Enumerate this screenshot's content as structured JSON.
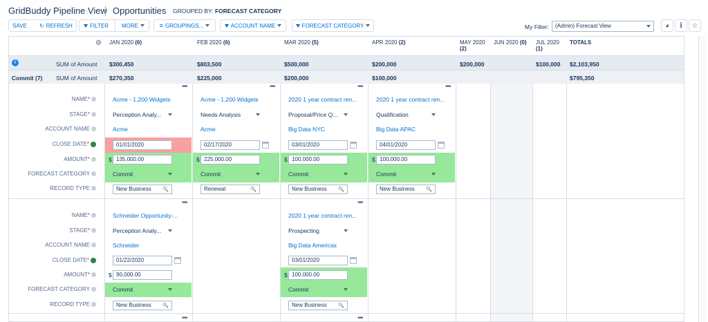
{
  "header": {
    "app_title": "GridBuddy Pipeline View",
    "object_title": "Opportunities",
    "grouped_label": "GROUPED BY:",
    "grouped_value": "FORECAST CATEGORY"
  },
  "toolbar": {
    "save": "SAVE",
    "refresh": "REFRESH",
    "filter": "FILTER",
    "more": "MORE",
    "groupings": "GROUPINGS...",
    "account_name": "ACCOUNT NAME",
    "forecast_category": "FORECAST CATEGORY",
    "my_filter_label": "My Filter:",
    "my_filter_value": "(Admin) Forecast View"
  },
  "columns": [
    {
      "label": "JAN 2020",
      "count": "(6)"
    },
    {
      "label": "FEB 2020",
      "count": "(6)"
    },
    {
      "label": "MAR 2020",
      "count": "(5)"
    },
    {
      "label": "APR 2020",
      "count": "(2)"
    },
    {
      "label": "MAY 2020",
      "count": "(2)"
    },
    {
      "label": "JUN 2020",
      "count": "(0)"
    },
    {
      "label": "JUL 2020",
      "count": "(1)"
    },
    {
      "label": "TOTALS",
      "count": ""
    }
  ],
  "summary": {
    "label": "SUM of Amount",
    "values": [
      "$300,450",
      "$803,500",
      "$500,000",
      "$200,000",
      "$200,000",
      "",
      "$100,000",
      "$2,103,950"
    ]
  },
  "commit_summary": {
    "group": "Commit (7)",
    "label": "SUM of Amount",
    "values": [
      "$270,350",
      "$225,000",
      "$200,000",
      "$100,000",
      "",
      "",
      "",
      "$795,350"
    ]
  },
  "field_labels": {
    "name": "NAME",
    "stage": "STAGE",
    "account": "ACCOUNT NAME",
    "close_date": "CLOSE DATE",
    "amount": "AMOUNT",
    "forecast": "FORECAST CATEGORY",
    "record_type": "RECORD TYPE",
    "required": "*"
  },
  "records_row1": [
    {
      "name": "Acme - 1,200 Widgets",
      "stage": "Perception Analy...",
      "account": "Acme",
      "close_date": "01/01/2020",
      "amount": "135,000.00",
      "forecast": "Commit",
      "record_type": "New Business"
    },
    {
      "name": "Acme - 1,200 Widgets",
      "stage": "Needs Analysis",
      "account": "Acme",
      "close_date": "02/17/2020",
      "amount": "225,000.00",
      "forecast": "Commit",
      "record_type": "Renewal"
    },
    {
      "name": "2020 1 year contract ren...",
      "stage": "Proposal/Price Q...",
      "account": "Big Data NYC",
      "close_date": "03/01/2020",
      "amount": "100,000.00",
      "forecast": "Commit",
      "record_type": "New Business"
    },
    {
      "name": "2020 1 year contract ren...",
      "stage": "Qualification",
      "account": "Big Data APAC",
      "close_date": "04/01/2020",
      "amount": "100,000.00",
      "forecast": "Commit",
      "record_type": "New Business"
    }
  ],
  "records_row2": [
    {
      "name": "Schneider Opportunity-...",
      "stage": "Perception Analy...",
      "account": "Schneider",
      "close_date": "01/22/2020",
      "amount": "90,000.00",
      "forecast": "Commit",
      "record_type": "New Business"
    },
    {
      "name": "2020 1 year contract ren...",
      "stage": "Prospecting",
      "account": "Big Data Americas",
      "close_date": "03/01/2020",
      "amount": "100,000.00",
      "forecast": "Commit",
      "record_type": "New Business"
    }
  ],
  "currency": "$",
  "colors": {
    "highlight_green": "#97e89a",
    "highlight_red": "#f7a1a1",
    "link": "#0070d2"
  },
  "icons": [
    "refresh-icon",
    "filter-icon",
    "groupings-icon",
    "chart-icon",
    "info-icon",
    "star-icon",
    "gear-icon",
    "calendar-icon",
    "search-icon"
  ]
}
